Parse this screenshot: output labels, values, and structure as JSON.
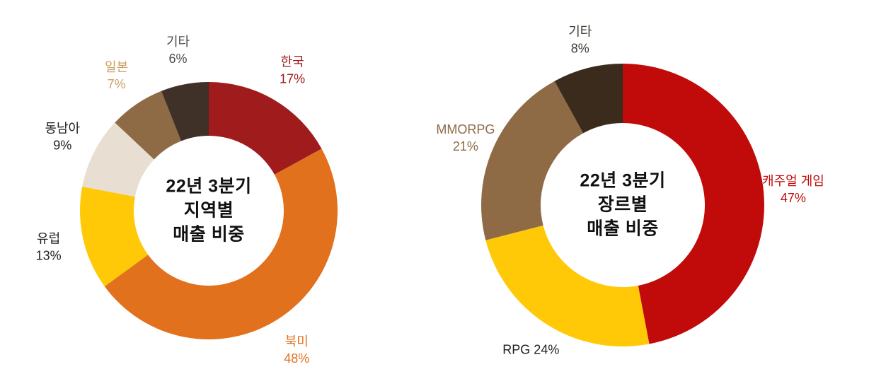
{
  "chart_data": [
    {
      "type": "donut",
      "title": "22년 3분기 지역별 매출 비중",
      "title_lines": [
        "22년 3분기",
        "지역별",
        "매출 비중"
      ],
      "unit": "%",
      "start_angle_deg": 0,
      "direction": "clockwise",
      "legend": "none",
      "labels_outside": true,
      "slices": [
        {
          "label": "한국",
          "value": 17,
          "color": "#A01B1B",
          "label_color": "#A01B1B",
          "label_layout": "stacked"
        },
        {
          "label": "북미",
          "value": 48,
          "color": "#E2711D",
          "label_color": "#E2711D",
          "label_layout": "stacked"
        },
        {
          "label": "유럽",
          "value": 13,
          "color": "#FFC907",
          "label_color": "#1F1F1F",
          "label_layout": "stacked"
        },
        {
          "label": "동남아",
          "value": 9,
          "color": "#E8DED2",
          "label_color": "#1F1F1F",
          "label_layout": "stacked"
        },
        {
          "label": "일본",
          "value": 7,
          "color": "#8E6A45",
          "label_color": "#C9A063",
          "label_layout": "stacked"
        },
        {
          "label": "기타",
          "value": 6,
          "color": "#3F3028",
          "label_color": "#4C4C4C",
          "label_layout": "stacked"
        }
      ]
    },
    {
      "type": "donut",
      "title": "22년 3분기 장르별 매출 비중",
      "title_lines": [
        "22년 3분기",
        "장르별",
        "매출 비중"
      ],
      "unit": "%",
      "start_angle_deg": 0,
      "direction": "clockwise",
      "legend": "none",
      "labels_outside": true,
      "slices": [
        {
          "label": "캐주얼 게임",
          "value": 47,
          "color": "#C10B0B",
          "label_color": "#C10B0B",
          "label_layout": "stacked"
        },
        {
          "label": "RPG",
          "value": 24,
          "color": "#FFC907",
          "label_color": "#1F1F1F",
          "label_layout": "inline"
        },
        {
          "label": "MMORPG",
          "value": 21,
          "color": "#8E6A45",
          "label_color": "#8E6A45",
          "label_layout": "stacked"
        },
        {
          "label": "기타",
          "value": 8,
          "color": "#3A2B1D",
          "label_color": "#3F3A34",
          "label_layout": "stacked"
        }
      ]
    }
  ]
}
